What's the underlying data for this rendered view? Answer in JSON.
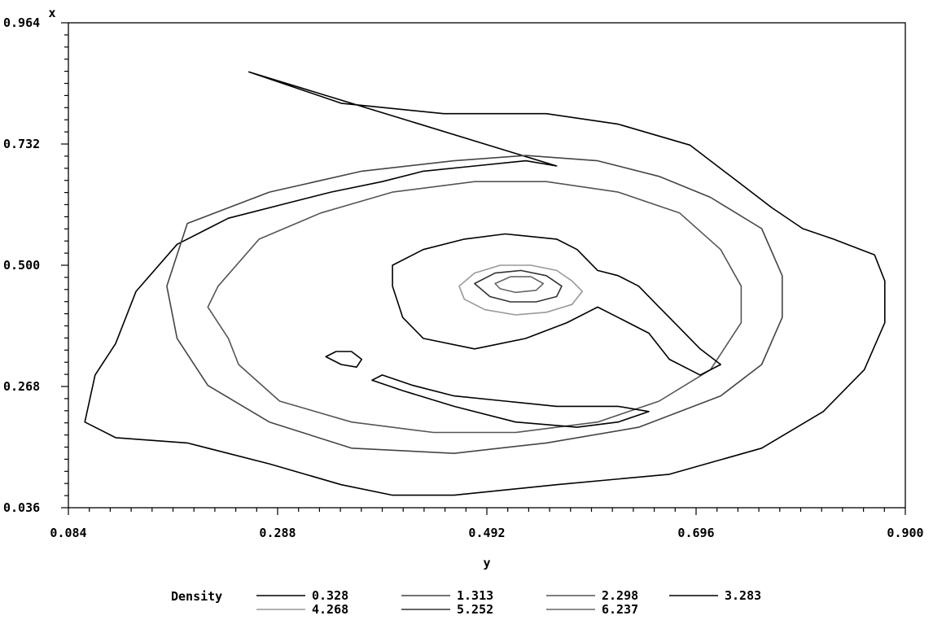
{
  "chart_data": {
    "type": "contour",
    "x_axis": {
      "label": "y",
      "range": [
        0.084,
        0.9
      ],
      "ticks": [
        "0.084",
        "0.288",
        "0.492",
        "0.696",
        "0.900"
      ]
    },
    "y_axis": {
      "label": "x",
      "range": [
        0.036,
        0.964
      ],
      "ticks": [
        "0.036",
        "0.268",
        "0.500",
        "0.732",
        "0.964"
      ]
    },
    "legend": {
      "title": "Density",
      "placement": "bottom",
      "entries": [
        {
          "label": "0.328",
          "color": "#000000"
        },
        {
          "label": "1.313",
          "color": "#444444"
        },
        {
          "label": "2.298",
          "color": "#555555"
        },
        {
          "label": "3.283",
          "color": "#000000"
        },
        {
          "label": "4.268",
          "color": "#999999"
        },
        {
          "label": "5.252",
          "color": "#333333"
        },
        {
          "label": "6.237",
          "color": "#666666"
        }
      ]
    },
    "contours": [
      {
        "level": "0.328",
        "color": "#000000",
        "closed": true,
        "points": [
          [
            0.26,
            0.87
          ],
          [
            0.35,
            0.81
          ],
          [
            0.45,
            0.79
          ],
          [
            0.55,
            0.79
          ],
          [
            0.62,
            0.77
          ],
          [
            0.69,
            0.73
          ],
          [
            0.73,
            0.67
          ],
          [
            0.77,
            0.61
          ],
          [
            0.8,
            0.57
          ],
          [
            0.83,
            0.55
          ],
          [
            0.87,
            0.52
          ],
          [
            0.88,
            0.47
          ],
          [
            0.88,
            0.39
          ],
          [
            0.86,
            0.3
          ],
          [
            0.82,
            0.22
          ],
          [
            0.76,
            0.15
          ],
          [
            0.67,
            0.1
          ],
          [
            0.56,
            0.08
          ],
          [
            0.46,
            0.06
          ],
          [
            0.4,
            0.06
          ],
          [
            0.35,
            0.08
          ],
          [
            0.28,
            0.12
          ],
          [
            0.2,
            0.16
          ],
          [
            0.13,
            0.17
          ],
          [
            0.1,
            0.2
          ],
          [
            0.11,
            0.29
          ],
          [
            0.13,
            0.35
          ],
          [
            0.15,
            0.45
          ],
          [
            0.19,
            0.54
          ],
          [
            0.24,
            0.59
          ],
          [
            0.3,
            0.62
          ],
          [
            0.34,
            0.64
          ],
          [
            0.39,
            0.66
          ],
          [
            0.43,
            0.68
          ],
          [
            0.48,
            0.69
          ],
          [
            0.53,
            0.7
          ],
          [
            0.56,
            0.69
          ]
        ]
      },
      {
        "level": "1.313",
        "color": "#444444",
        "closed": true,
        "points": [
          [
            0.2,
            0.58
          ],
          [
            0.28,
            0.64
          ],
          [
            0.37,
            0.68
          ],
          [
            0.46,
            0.7
          ],
          [
            0.53,
            0.71
          ],
          [
            0.6,
            0.7
          ],
          [
            0.66,
            0.67
          ],
          [
            0.71,
            0.63
          ],
          [
            0.76,
            0.57
          ],
          [
            0.78,
            0.48
          ],
          [
            0.78,
            0.4
          ],
          [
            0.76,
            0.31
          ],
          [
            0.72,
            0.25
          ],
          [
            0.64,
            0.19
          ],
          [
            0.55,
            0.16
          ],
          [
            0.46,
            0.14
          ],
          [
            0.36,
            0.15
          ],
          [
            0.28,
            0.2
          ],
          [
            0.22,
            0.27
          ],
          [
            0.19,
            0.36
          ],
          [
            0.18,
            0.46
          ]
        ]
      },
      {
        "level": "2.298",
        "color": "#555555",
        "closed": true,
        "points": [
          [
            0.23,
            0.46
          ],
          [
            0.27,
            0.55
          ],
          [
            0.33,
            0.6
          ],
          [
            0.4,
            0.64
          ],
          [
            0.48,
            0.66
          ],
          [
            0.55,
            0.66
          ],
          [
            0.62,
            0.64
          ],
          [
            0.68,
            0.6
          ],
          [
            0.72,
            0.53
          ],
          [
            0.74,
            0.46
          ],
          [
            0.74,
            0.39
          ],
          [
            0.71,
            0.3
          ],
          [
            0.66,
            0.24
          ],
          [
            0.6,
            0.2
          ],
          [
            0.52,
            0.18
          ],
          [
            0.44,
            0.18
          ],
          [
            0.36,
            0.2
          ],
          [
            0.29,
            0.24
          ],
          [
            0.25,
            0.31
          ],
          [
            0.24,
            0.36
          ],
          [
            0.22,
            0.42
          ]
        ]
      },
      {
        "level": "3.283",
        "color": "#000000",
        "closed": true,
        "points": [
          [
            0.4,
            0.5
          ],
          [
            0.43,
            0.53
          ],
          [
            0.47,
            0.55
          ],
          [
            0.51,
            0.56
          ],
          [
            0.56,
            0.55
          ],
          [
            0.58,
            0.53
          ],
          [
            0.6,
            0.49
          ],
          [
            0.62,
            0.48
          ],
          [
            0.64,
            0.46
          ],
          [
            0.66,
            0.42
          ],
          [
            0.68,
            0.38
          ],
          [
            0.7,
            0.34
          ],
          [
            0.72,
            0.31
          ],
          [
            0.7,
            0.29
          ],
          [
            0.67,
            0.32
          ],
          [
            0.65,
            0.37
          ],
          [
            0.62,
            0.4
          ],
          [
            0.6,
            0.42
          ],
          [
            0.57,
            0.39
          ],
          [
            0.53,
            0.36
          ],
          [
            0.48,
            0.34
          ],
          [
            0.43,
            0.36
          ],
          [
            0.41,
            0.4
          ],
          [
            0.4,
            0.46
          ]
        ]
      },
      {
        "level": "3.283",
        "color": "#000000",
        "closed": true,
        "points": [
          [
            0.38,
            0.28
          ],
          [
            0.41,
            0.26
          ],
          [
            0.46,
            0.23
          ],
          [
            0.52,
            0.2
          ],
          [
            0.58,
            0.19
          ],
          [
            0.62,
            0.2
          ],
          [
            0.65,
            0.22
          ],
          [
            0.62,
            0.23
          ],
          [
            0.56,
            0.23
          ],
          [
            0.51,
            0.24
          ],
          [
            0.46,
            0.25
          ],
          [
            0.42,
            0.27
          ],
          [
            0.39,
            0.29
          ]
        ]
      },
      {
        "level": "3.283",
        "color": "#000000",
        "closed": true,
        "points": [
          [
            0.335,
            0.325
          ],
          [
            0.345,
            0.335
          ],
          [
            0.36,
            0.335
          ],
          [
            0.37,
            0.32
          ],
          [
            0.365,
            0.305
          ],
          [
            0.35,
            0.31
          ]
        ]
      },
      {
        "level": "4.268",
        "color": "#999999",
        "closed": true,
        "points": [
          [
            0.465,
            0.46
          ],
          [
            0.48,
            0.485
          ],
          [
            0.505,
            0.5
          ],
          [
            0.535,
            0.5
          ],
          [
            0.56,
            0.49
          ],
          [
            0.575,
            0.47
          ],
          [
            0.585,
            0.45
          ],
          [
            0.575,
            0.425
          ],
          [
            0.55,
            0.41
          ],
          [
            0.52,
            0.405
          ],
          [
            0.49,
            0.415
          ],
          [
            0.47,
            0.435
          ]
        ]
      },
      {
        "level": "5.252",
        "color": "#333333",
        "closed": true,
        "points": [
          [
            0.48,
            0.465
          ],
          [
            0.5,
            0.485
          ],
          [
            0.525,
            0.49
          ],
          [
            0.55,
            0.48
          ],
          [
            0.565,
            0.46
          ],
          [
            0.56,
            0.44
          ],
          [
            0.54,
            0.43
          ],
          [
            0.515,
            0.43
          ],
          [
            0.495,
            0.44
          ]
        ]
      },
      {
        "level": "6.237",
        "color": "#666666",
        "closed": true,
        "points": [
          [
            0.5,
            0.465
          ],
          [
            0.515,
            0.478
          ],
          [
            0.535,
            0.478
          ],
          [
            0.547,
            0.465
          ],
          [
            0.54,
            0.452
          ],
          [
            0.52,
            0.448
          ],
          [
            0.505,
            0.455
          ]
        ]
      }
    ]
  }
}
